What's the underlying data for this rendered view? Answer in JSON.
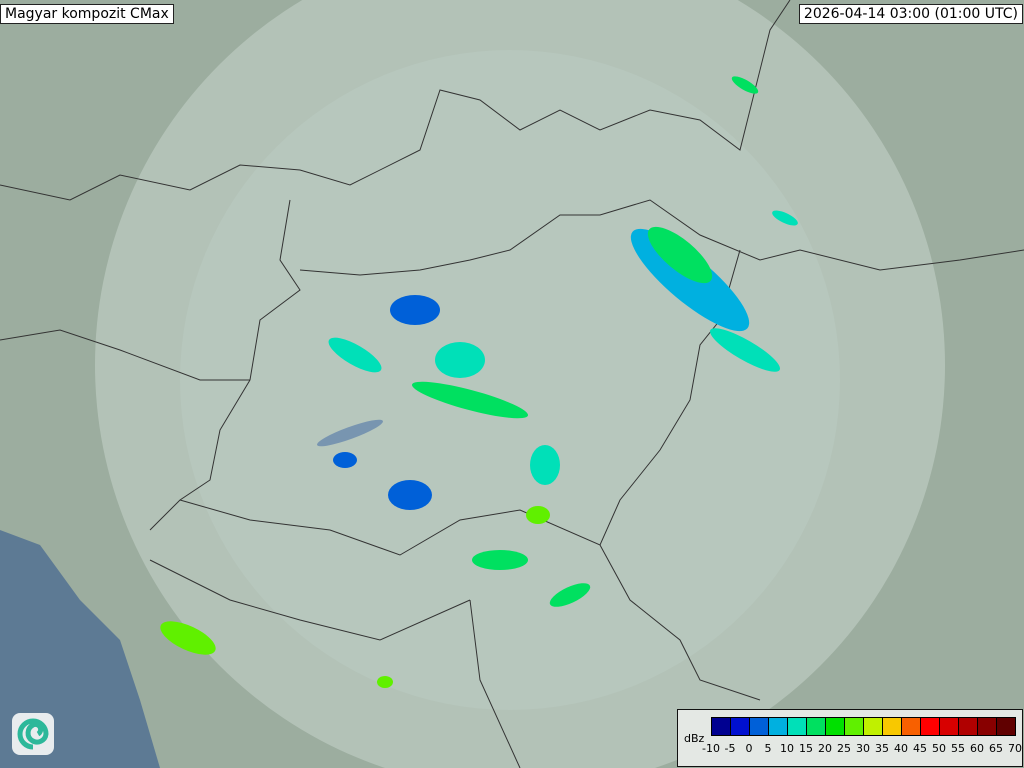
{
  "header": {
    "title": "Magyar kompozit  CMax",
    "timestamp": "2026-04-14 03:00 (01:00 UTC)"
  },
  "legend": {
    "unit": "dBz",
    "ticks": [
      "-10",
      "-5",
      "0",
      "5",
      "10",
      "15",
      "20",
      "25",
      "30",
      "35",
      "40",
      "45",
      "50",
      "55",
      "60",
      "65",
      "70"
    ],
    "colors": [
      "#000090",
      "#0010d0",
      "#0060d8",
      "#00b0e0",
      "#00e0b8",
      "#00e060",
      "#00e000",
      "#60f000",
      "#c0f000",
      "#f8c800",
      "#f86000",
      "#ff0000",
      "#d80000",
      "#b00000",
      "#880000",
      "#600000"
    ]
  },
  "map": {
    "land_color": "#9aab9f",
    "sea_color": "#5d7a94",
    "coverage_color": "#d8e4e0"
  },
  "logo": {
    "icon": "swirl-logo-icon"
  }
}
